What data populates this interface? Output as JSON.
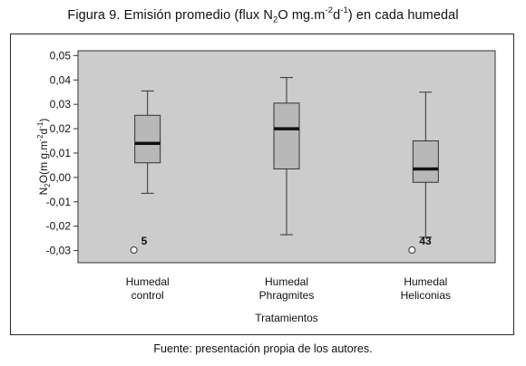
{
  "title": {
    "prefix": "Figura 9. Emisión promedio (flux N",
    "sub1": "2",
    "mid": "O mg.m",
    "sup1": "-2",
    "mid2": "d",
    "sup2": "-1",
    "suffix": ") en cada humedal"
  },
  "source": "Fuente: presentación propia de los autores.",
  "colors": {
    "plot_bg": "#cccccc",
    "box_fill": "#b8b8b8",
    "median": "#111111",
    "stroke": "#333333"
  },
  "chart_data": {
    "type": "box",
    "xlabel": "Tratamientos",
    "ylabel": {
      "base": "N",
      "sub": "2",
      "rest": "O(m g.m",
      "sup1": "-2",
      "rest2": "d",
      "sup2": "-1",
      "end": ")"
    },
    "ylim": [
      -0.035,
      0.052
    ],
    "yticks": [
      {
        "value": 0.05,
        "label": "0,05"
      },
      {
        "value": 0.04,
        "label": "0,04"
      },
      {
        "value": 0.03,
        "label": "0,03"
      },
      {
        "value": 0.02,
        "label": "0,02"
      },
      {
        "value": 0.01,
        "label": "0,01"
      },
      {
        "value": 0.0,
        "label": "0,00"
      },
      {
        "value": -0.01,
        "label": "-0,01"
      },
      {
        "value": -0.02,
        "label": "-0,02"
      },
      {
        "value": -0.03,
        "label": "-0,03"
      }
    ],
    "grid": false,
    "categories": [
      {
        "line1": "Humedal",
        "line2": "control"
      },
      {
        "line1": "Humedal",
        "line2": "Phragmites"
      },
      {
        "line1": "Humedal",
        "line2": "Heliconias"
      }
    ],
    "boxes": [
      {
        "whisker_low": -0.0065,
        "q1": 0.006,
        "median": 0.014,
        "q3": 0.0255,
        "whisker_high": 0.0355,
        "outliers": [
          {
            "value": -0.0298,
            "label": "5"
          }
        ]
      },
      {
        "whisker_low": -0.0235,
        "q1": 0.0035,
        "median": 0.02,
        "q3": 0.0305,
        "whisker_high": 0.041,
        "outliers": []
      },
      {
        "whisker_low": -0.0245,
        "q1": -0.002,
        "median": 0.0035,
        "q3": 0.015,
        "whisker_high": 0.035,
        "outliers": [
          {
            "value": -0.0298,
            "label": "43"
          }
        ]
      }
    ]
  }
}
